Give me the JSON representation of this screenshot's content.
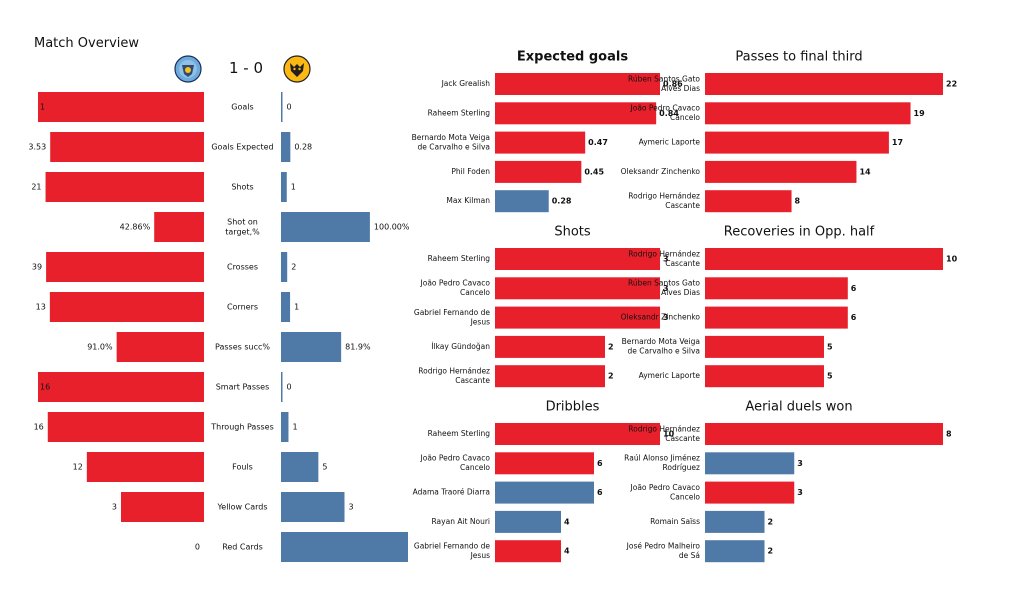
{
  "title": "Match Overview",
  "score": "1 - 0",
  "teams": {
    "home": {
      "logo": "manchester-city-crest-icon",
      "color": "#e8202c"
    },
    "away": {
      "logo": "wolves-crest-icon",
      "color": "#4f7aa8"
    }
  },
  "stats": [
    {
      "label": "Goals",
      "home": 1,
      "away": 0,
      "home_text": "1",
      "away_text": "0"
    },
    {
      "label": "Goals Expected",
      "home": 3.53,
      "away": 0.28,
      "home_text": "3.53",
      "away_text": "0.28"
    },
    {
      "label": "Shots",
      "home": 21,
      "away": 1,
      "home_text": "21",
      "away_text": "1"
    },
    {
      "label": "Shot on target,%",
      "home": 42.86,
      "away": 100.0,
      "home_text": "42.86%",
      "away_text": "100.00%"
    },
    {
      "label": "Crosses",
      "home": 39,
      "away": 2,
      "home_text": "39",
      "away_text": "2"
    },
    {
      "label": "Corners",
      "home": 13,
      "away": 1,
      "home_text": "13",
      "away_text": "1"
    },
    {
      "label": "Passes succ%",
      "home": 91.0,
      "away": 81.9,
      "home_text": "91.0%",
      "away_text": "81.9%"
    },
    {
      "label": "Smart Passes",
      "home": 16,
      "away": 0,
      "home_text": "16",
      "away_text": "0"
    },
    {
      "label": "Through Passes",
      "home": 16,
      "away": 1,
      "home_text": "16",
      "away_text": "1"
    },
    {
      "label": "Fouls",
      "home": 12,
      "away": 5,
      "home_text": "12",
      "away_text": "5"
    },
    {
      "label": "Yellow Cards",
      "home": 3,
      "away": 3,
      "home_text": "3",
      "away_text": "3"
    },
    {
      "label": "Red Cards",
      "home": 0,
      "away": 1,
      "home_text": "0",
      "away_text": "1"
    }
  ],
  "chart_data": [
    {
      "type": "bar",
      "orientation": "horizontal",
      "title": "Expected goals",
      "categories": [
        "Jack Grealish",
        "Raheem Sterling",
        "Bernardo Mota Veiga de Carvalho e Silva",
        "Phil Foden",
        "Max Kilman"
      ],
      "values": [
        0.86,
        0.84,
        0.47,
        0.45,
        0.28
      ],
      "labels": [
        "0.86",
        "0.84",
        "0.47",
        "0.45",
        "0.28"
      ],
      "teams": [
        "home",
        "home",
        "home",
        "home",
        "away"
      ],
      "xmax": 0.86
    },
    {
      "type": "bar",
      "orientation": "horizontal",
      "title": "Passes to final third",
      "categories": [
        "Rúben  Santos Gato Alves Dias",
        "João Pedro Cavaco Cancelo",
        "Aymeric  Laporte",
        "Oleksandr Zinchenko",
        "Rodrigo Hernández Cascante"
      ],
      "values": [
        22,
        19,
        17,
        14,
        8
      ],
      "labels": [
        "22",
        "19",
        "17",
        "14",
        "8"
      ],
      "teams": [
        "home",
        "home",
        "home",
        "home",
        "home"
      ],
      "xmax": 22
    },
    {
      "type": "bar",
      "orientation": "horizontal",
      "title": "Shots",
      "categories": [
        "Raheem Sterling",
        "João Pedro Cavaco Cancelo",
        "Gabriel Fernando de Jesus",
        "İlkay Gündoğan",
        "Rodrigo Hernández Cascante"
      ],
      "values": [
        3,
        3,
        3,
        2,
        2
      ],
      "labels": [
        "3",
        "3",
        "3",
        "2",
        "2"
      ],
      "teams": [
        "home",
        "home",
        "home",
        "home",
        "home"
      ],
      "xmax": 3
    },
    {
      "type": "bar",
      "orientation": "horizontal",
      "title": "Recoveries in Opp. half",
      "categories": [
        "Rodrigo Hernández Cascante",
        "Rúben  Santos Gato Alves Dias",
        "Oleksandr Zinchenko",
        "Bernardo Mota Veiga de Carvalho e Silva",
        "Aymeric  Laporte"
      ],
      "values": [
        10,
        6,
        6,
        5,
        5
      ],
      "labels": [
        "10",
        "6",
        "6",
        "5",
        "5"
      ],
      "teams": [
        "home",
        "home",
        "home",
        "home",
        "home"
      ],
      "xmax": 10
    },
    {
      "type": "bar",
      "orientation": "horizontal",
      "title": "Dribbles",
      "categories": [
        "Raheem Sterling",
        "João Pedro Cavaco Cancelo",
        "Adama Traoré Diarra",
        "Rayan Ait Nouri",
        "Gabriel Fernando de Jesus"
      ],
      "values": [
        10,
        6,
        6,
        4,
        4
      ],
      "labels": [
        "10",
        "6",
        "6",
        "4",
        "4"
      ],
      "teams": [
        "home",
        "home",
        "away",
        "away",
        "home"
      ],
      "xmax": 10
    },
    {
      "type": "bar",
      "orientation": "horizontal",
      "title": "Aerial duels won",
      "categories": [
        "Rodrigo Hernández Cascante",
        "Raúl Alonso Jiménez Rodríguez",
        "João Pedro Cavaco Cancelo",
        "Romain Saïss",
        "José Pedro Malheiro de Sá"
      ],
      "values": [
        8,
        3,
        3,
        2,
        2
      ],
      "labels": [
        "8",
        "3",
        "3",
        "2",
        "2"
      ],
      "teams": [
        "home",
        "away",
        "home",
        "away",
        "away"
      ],
      "xmax": 8
    }
  ]
}
